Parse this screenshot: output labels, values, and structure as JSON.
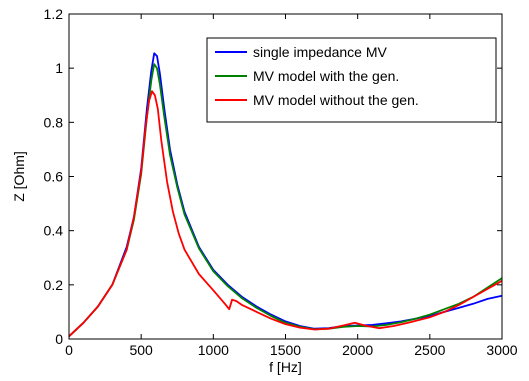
{
  "chart_data": {
    "type": "line",
    "xlabel": "f [Hz]",
    "ylabel": "Z [Ohm]",
    "xlim": [
      0,
      3000
    ],
    "ylim": [
      0,
      1.2
    ],
    "xticks": [
      "0",
      "500",
      "1000",
      "1500",
      "2000",
      "2500",
      "3000"
    ],
    "yticks": [
      "0",
      "0.2",
      "0.4",
      "0.6",
      "0.8",
      "1",
      "1.2"
    ],
    "xtick_values": [
      0,
      500,
      1000,
      1500,
      2000,
      2500,
      3000
    ],
    "ytick_values": [
      0,
      0.2,
      0.4,
      0.6,
      0.8,
      1.0,
      1.2
    ],
    "grid": false,
    "legend_position": "top-right",
    "series": [
      {
        "name": "single impedance MV",
        "color": "#0000ff",
        "x": [
          0,
          100,
          200,
          300,
          400,
          450,
          500,
          540,
          570,
          590,
          610,
          630,
          660,
          700,
          750,
          800,
          900,
          1000,
          1100,
          1200,
          1300,
          1400,
          1500,
          1600,
          1700,
          1800,
          1900,
          2000,
          2100,
          2200,
          2300,
          2400,
          2500,
          2600,
          2700,
          2800,
          2900,
          3000
        ],
        "y": [
          0.01,
          0.06,
          0.12,
          0.2,
          0.34,
          0.45,
          0.63,
          0.85,
          0.99,
          1.055,
          1.045,
          0.98,
          0.85,
          0.7,
          0.57,
          0.47,
          0.34,
          0.255,
          0.2,
          0.155,
          0.12,
          0.09,
          0.065,
          0.048,
          0.038,
          0.04,
          0.048,
          0.05,
          0.052,
          0.058,
          0.065,
          0.075,
          0.085,
          0.1,
          0.115,
          0.13,
          0.148,
          0.16
        ]
      },
      {
        "name": "MV model with the gen.",
        "color": "#008000",
        "x": [
          0,
          100,
          200,
          300,
          400,
          450,
          500,
          540,
          570,
          590,
          610,
          630,
          660,
          700,
          750,
          800,
          900,
          1000,
          1100,
          1200,
          1300,
          1400,
          1500,
          1600,
          1700,
          1800,
          1900,
          2000,
          2100,
          2200,
          2300,
          2400,
          2500,
          2600,
          2700,
          2800,
          2900,
          3000
        ],
        "y": [
          0.01,
          0.06,
          0.12,
          0.2,
          0.33,
          0.44,
          0.61,
          0.82,
          0.955,
          1.015,
          1.0,
          0.94,
          0.82,
          0.68,
          0.56,
          0.46,
          0.335,
          0.25,
          0.195,
          0.15,
          0.115,
          0.085,
          0.06,
          0.045,
          0.036,
          0.038,
          0.045,
          0.048,
          0.046,
          0.052,
          0.062,
          0.075,
          0.09,
          0.11,
          0.13,
          0.155,
          0.19,
          0.225
        ]
      },
      {
        "name": "MV model without the gen.",
        "color": "#ff0000",
        "x": [
          0,
          100,
          200,
          300,
          400,
          450,
          500,
          530,
          555,
          575,
          595,
          615,
          640,
          680,
          720,
          760,
          800,
          900,
          1000,
          1080,
          1110,
          1130,
          1160,
          1200,
          1300,
          1400,
          1500,
          1600,
          1700,
          1800,
          1900,
          1980,
          2050,
          2150,
          2250,
          2350,
          2500,
          2600,
          2700,
          2800,
          2900,
          3000
        ],
        "y": [
          0.01,
          0.06,
          0.12,
          0.2,
          0.33,
          0.45,
          0.62,
          0.78,
          0.88,
          0.915,
          0.9,
          0.85,
          0.73,
          0.58,
          0.47,
          0.39,
          0.33,
          0.24,
          0.18,
          0.13,
          0.11,
          0.145,
          0.14,
          0.125,
          0.1,
          0.075,
          0.055,
          0.042,
          0.035,
          0.038,
          0.05,
          0.06,
          0.05,
          0.04,
          0.048,
          0.06,
          0.08,
          0.1,
          0.125,
          0.155,
          0.185,
          0.215
        ]
      }
    ]
  }
}
